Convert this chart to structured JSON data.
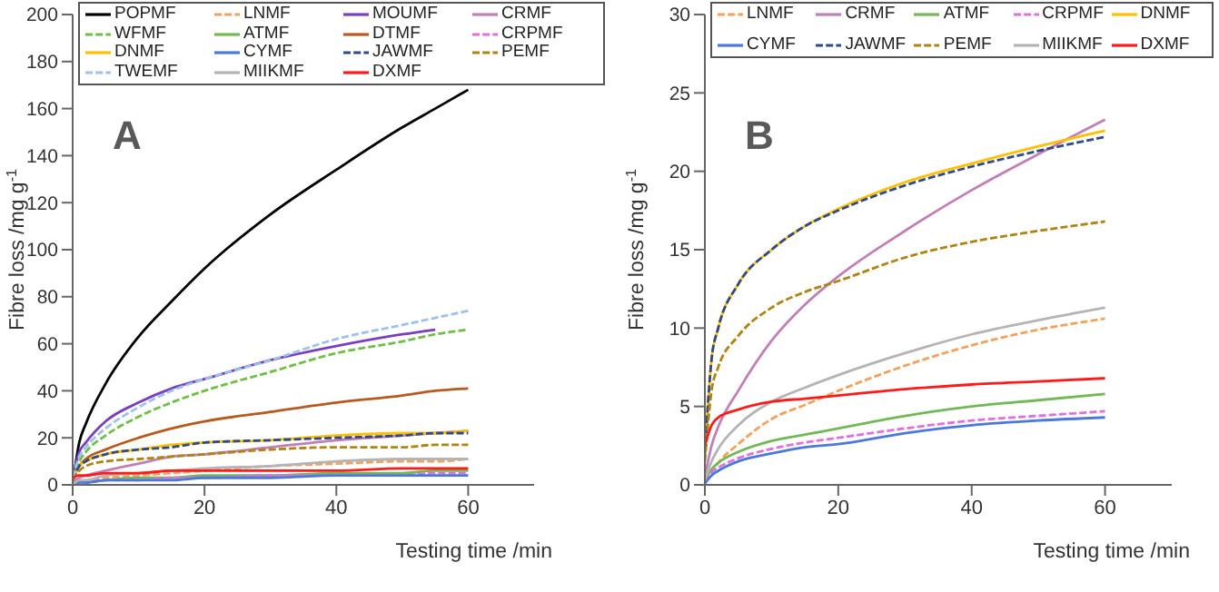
{
  "chart_data": [
    {
      "type": "line",
      "xlabel": "Testing time /min",
      "ylabel": "Fibre loss /mg g$^{-1}$",
      "annotations": [
        "A"
      ],
      "xlim": [
        0,
        70
      ],
      "xticks": [
        0,
        20,
        40,
        60
      ],
      "ylim": [
        0,
        200
      ],
      "yticks": [
        0,
        20,
        40,
        60,
        80,
        100,
        120,
        140,
        160,
        180,
        200
      ],
      "legend": "top",
      "x": [
        0,
        1,
        2,
        5,
        10,
        15,
        20,
        30,
        40,
        50,
        55,
        60
      ],
      "series": [
        {
          "name": "POPMF",
          "color": "#000000",
          "line_style": "solid",
          "values": [
            0,
            18,
            26,
            43,
            63,
            78,
            92,
            115,
            134,
            152,
            160,
            168
          ]
        },
        {
          "name": "LNMF",
          "color": "#f4a15c",
          "line_style": "dashed",
          "values": [
            0,
            1,
            1,
            3,
            4,
            5,
            6,
            8,
            9,
            10,
            10,
            11
          ]
        },
        {
          "name": "MOUMF",
          "color": "#7a3fc0",
          "line_style": "solid",
          "values": [
            3,
            14,
            18,
            27,
            35,
            41,
            45,
            53,
            59,
            64,
            66,
            null
          ]
        },
        {
          "name": "CRMF",
          "color": "#c27fb5",
          "line_style": "solid",
          "values": [
            1,
            3,
            4,
            6,
            9,
            12,
            13,
            16,
            19,
            21,
            22,
            23
          ]
        },
        {
          "name": "WFMF",
          "color": "#6fbf45",
          "line_style": "dashed",
          "values": [
            2,
            10,
            14,
            21,
            29,
            35,
            40,
            48,
            56,
            61,
            64,
            66
          ]
        },
        {
          "name": "ATMF",
          "color": "#72b856",
          "line_style": "solid",
          "values": [
            null,
            null,
            1,
            2,
            3,
            3,
            4,
            4,
            5,
            5,
            6,
            6
          ]
        },
        {
          "name": "DTMF",
          "color": "#b85a1e",
          "line_style": "solid",
          "values": [
            2,
            8,
            11,
            15,
            20,
            24,
            27,
            31,
            35,
            38,
            40,
            41
          ]
        },
        {
          "name": "CRPMF",
          "color": "#e06fe0",
          "line_style": "dashed",
          "values": [
            0,
            1,
            1,
            2,
            2,
            3,
            3,
            4,
            4,
            4,
            5,
            5
          ]
        },
        {
          "name": "DNMF",
          "color": "#ffc000",
          "line_style": "solid",
          "values": [
            2,
            8,
            10,
            13,
            15,
            17,
            18,
            19,
            21,
            22,
            22,
            23
          ]
        },
        {
          "name": "CYMF",
          "color": "#4a78dc",
          "line_style": "solid",
          "values": [
            0,
            1,
            1,
            2,
            2,
            2,
            3,
            3,
            4,
            4,
            4,
            4
          ]
        },
        {
          "name": "JAWMF",
          "color": "#2e4a8a",
          "line_style": "dashed",
          "values": [
            2,
            8,
            10,
            13,
            15,
            16,
            18,
            19,
            20,
            21,
            22,
            22
          ]
        },
        {
          "name": "PEMF",
          "color": "#b08412",
          "line_style": "dashed",
          "values": [
            2,
            6,
            8,
            10,
            11,
            12,
            13,
            15,
            16,
            16,
            17,
            17
          ]
        },
        {
          "name": "TWEMF",
          "color": "#9cc2ea",
          "line_style": "dashed",
          "values": [
            3,
            12,
            16,
            24,
            33,
            40,
            45,
            53,
            62,
            68,
            71,
            74
          ]
        },
        {
          "name": "MIIKMF",
          "color": "#b4b4b4",
          "line_style": "solid",
          "values": [
            0,
            2,
            2,
            4,
            5,
            6,
            7,
            8,
            10,
            11,
            11,
            11
          ]
        },
        {
          "name": "DXMF",
          "color": "#ff1a1a",
          "line_style": "solid",
          "values": [
            3,
            4,
            4,
            5,
            5,
            6,
            6,
            6,
            6,
            7,
            7,
            7
          ]
        }
      ]
    },
    {
      "type": "line",
      "xlabel": "Testing time /min",
      "ylabel": "Fibre loss /mg g$^{-1}$",
      "annotations": [
        "B"
      ],
      "xlim": [
        0,
        70
      ],
      "xticks": [
        0,
        20,
        40,
        60
      ],
      "ylim": [
        0,
        30
      ],
      "yticks": [
        0,
        5,
        10,
        15,
        20,
        25,
        30
      ],
      "legend": "top",
      "x": [
        0,
        1,
        2,
        5,
        10,
        15,
        20,
        30,
        40,
        50,
        60
      ],
      "series": [
        {
          "name": "LNMF",
          "color": "#f4a15c",
          "line_style": "dashed",
          "values": [
            0.2,
            0.8,
            1.4,
            2.6,
            4.2,
            5.1,
            6,
            7.6,
            8.9,
            9.9,
            10.6
          ]
        },
        {
          "name": "CRMF",
          "color": "#c27fb5",
          "line_style": "solid",
          "values": [
            0.5,
            2.5,
            3.7,
            6,
            9.2,
            11.5,
            13.3,
            16.2,
            18.8,
            21.1,
            23.3
          ]
        },
        {
          "name": "ATMF",
          "color": "#72b856",
          "line_style": "solid",
          "values": [
            0.3,
            1,
            1.4,
            2.1,
            2.8,
            3.2,
            3.6,
            4.4,
            5,
            5.4,
            5.8
          ]
        },
        {
          "name": "CRPMF",
          "color": "#e06fe0",
          "line_style": "dashed",
          "values": [
            0.2,
            0.8,
            1.1,
            1.7,
            2.3,
            2.7,
            3,
            3.6,
            4.1,
            4.4,
            4.7
          ]
        },
        {
          "name": "DNMF",
          "color": "#ffc000",
          "line_style": "solid",
          "values": [
            2,
            8,
            10,
            12.8,
            15,
            16.5,
            17.6,
            19.3,
            20.5,
            21.6,
            22.6
          ]
        },
        {
          "name": "CYMF",
          "color": "#4a78dc",
          "line_style": "solid",
          "values": [
            0.1,
            0.6,
            0.9,
            1.5,
            2,
            2.4,
            2.6,
            3.3,
            3.8,
            4.1,
            4.3
          ]
        },
        {
          "name": "JAWMF",
          "color": "#2e4a8a",
          "line_style": "dashed",
          "values": [
            2,
            8,
            10,
            12.8,
            15,
            16.5,
            17.5,
            19.1,
            20.3,
            21.3,
            22.2
          ]
        },
        {
          "name": "PEMF",
          "color": "#b08412",
          "line_style": "dashed",
          "values": [
            1.5,
            6,
            7.5,
            9.5,
            11.3,
            12.3,
            13,
            14.5,
            15.5,
            16.2,
            16.8
          ]
        },
        {
          "name": "MIIKMF",
          "color": "#b4b4b4",
          "line_style": "solid",
          "values": [
            0.3,
            1.5,
            2.3,
            3.8,
            5.3,
            6.2,
            7,
            8.4,
            9.6,
            10.5,
            11.3
          ]
        },
        {
          "name": "DXMF",
          "color": "#ff1a1a",
          "line_style": "solid",
          "values": [
            2.5,
            3.8,
            4.3,
            4.8,
            5.3,
            5.5,
            5.7,
            6.1,
            6.4,
            6.6,
            6.8
          ]
        }
      ]
    }
  ]
}
